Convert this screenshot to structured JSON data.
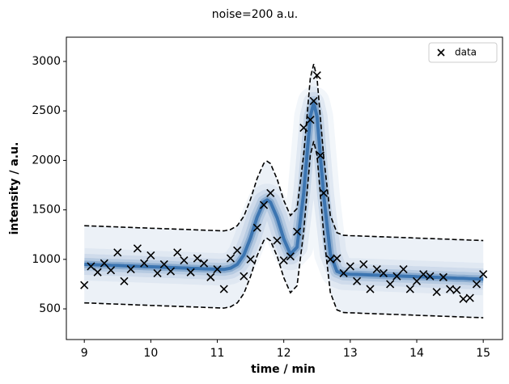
{
  "chart_data": {
    "type": "scatter",
    "title": "noise=200 a.u.",
    "xlabel": "time / min",
    "ylabel": "intensity / a.u.",
    "xlim": [
      8.73,
      15.29
    ],
    "ylim": [
      190,
      3245
    ],
    "xticks": [
      9,
      10,
      11,
      12,
      13,
      14,
      15
    ],
    "yticks": [
      500,
      1000,
      1500,
      2000,
      2500,
      3000
    ],
    "legend": "upper right",
    "series": [
      {
        "name": "data",
        "color": "#000000",
        "marker": "x",
        "x": [
          9.0,
          9.1,
          9.2,
          9.3,
          9.4,
          9.5,
          9.6,
          9.7,
          9.8,
          9.9,
          10.0,
          10.1,
          10.2,
          10.3,
          10.4,
          10.5,
          10.6,
          10.7,
          10.8,
          10.9,
          11.0,
          11.1,
          11.2,
          11.3,
          11.4,
          11.5,
          11.6,
          11.7,
          11.8,
          11.9,
          12.0,
          12.1,
          12.2,
          12.3,
          12.4,
          12.45,
          12.5,
          12.55,
          12.6,
          12.7,
          12.8,
          12.9,
          13.0,
          13.1,
          13.2,
          13.3,
          13.4,
          13.5,
          13.6,
          13.7,
          13.8,
          13.9,
          14.0,
          14.1,
          14.2,
          14.3,
          14.4,
          14.5,
          14.6,
          14.7,
          14.8,
          14.9,
          15.0
        ],
        "values": [
          740,
          930,
          870,
          960,
          890,
          1070,
          780,
          900,
          1110,
          960,
          1040,
          860,
          950,
          880,
          1070,
          990,
          870,
          1010,
          960,
          820,
          900,
          700,
          1010,
          1090,
          830,
          1000,
          1320,
          1550,
          1670,
          1190,
          990,
          1030,
          1280,
          2330,
          2410,
          2600,
          2860,
          2050,
          1670,
          1000,
          1010,
          860,
          930,
          780,
          950,
          700,
          900,
          860,
          750,
          830,
          900,
          700,
          780,
          850,
          830,
          670,
          820,
          700,
          690,
          600,
          610,
          750,
          850
        ]
      }
    ],
    "band": {
      "color": "#08519c",
      "line_color": "#000000",
      "line_style": "dashed",
      "x": [
        9.0,
        9.1,
        9.2,
        9.3,
        9.4,
        9.5,
        9.6,
        9.7,
        9.8,
        9.9,
        10.0,
        10.1,
        10.2,
        10.3,
        10.4,
        10.5,
        10.6,
        10.7,
        10.8,
        10.9,
        11.0,
        11.1,
        11.2,
        11.3,
        11.4,
        11.5,
        11.6,
        11.7,
        11.75,
        11.8,
        11.9,
        12.0,
        12.1,
        12.2,
        12.3,
        12.4,
        12.45,
        12.5,
        12.6,
        12.7,
        12.8,
        12.9,
        13.0,
        13.1,
        13.2,
        13.3,
        13.4,
        13.5,
        13.6,
        13.7,
        13.8,
        13.9,
        14.0,
        14.1,
        14.2,
        14.3,
        14.4,
        14.5,
        14.6,
        14.7,
        14.8,
        14.9,
        15.0
      ],
      "mean": [
        950,
        948,
        945,
        943,
        940,
        938,
        935,
        933,
        930,
        928,
        925,
        923,
        920,
        918,
        915,
        913,
        910,
        908,
        905,
        903,
        900,
        898,
        911,
        950,
        1046,
        1218,
        1428,
        1581,
        1601,
        1578,
        1421,
        1205,
        1053,
        1124,
        1672,
        2443,
        2584,
        2441,
        1648,
        1055,
        879,
        853,
        850,
        848,
        845,
        843,
        840,
        838,
        835,
        833,
        830,
        828,
        825,
        823,
        820,
        818,
        815,
        813,
        810,
        808,
        805,
        803,
        800
      ],
      "upper": [
        1340,
        1338,
        1335,
        1333,
        1330,
        1328,
        1325,
        1323,
        1320,
        1318,
        1315,
        1313,
        1310,
        1308,
        1305,
        1303,
        1300,
        1298,
        1295,
        1293,
        1290,
        1288,
        1301,
        1340,
        1436,
        1608,
        1818,
        1971,
        1991,
        1968,
        1811,
        1595,
        1443,
        1514,
        2062,
        2833,
        2974,
        2831,
        2038,
        1445,
        1269,
        1243,
        1240,
        1238,
        1235,
        1233,
        1230,
        1228,
        1225,
        1223,
        1220,
        1218,
        1215,
        1213,
        1210,
        1208,
        1205,
        1203,
        1200,
        1198,
        1195,
        1193,
        1190
      ],
      "lower": [
        560,
        558,
        555,
        553,
        550,
        548,
        545,
        543,
        540,
        538,
        535,
        533,
        530,
        528,
        525,
        523,
        520,
        518,
        515,
        513,
        510,
        508,
        521,
        560,
        656,
        828,
        1038,
        1191,
        1211,
        1188,
        1031,
        815,
        663,
        734,
        1282,
        2053,
        2194,
        2051,
        1258,
        665,
        489,
        463,
        460,
        458,
        455,
        453,
        450,
        448,
        445,
        443,
        440,
        438,
        435,
        433,
        430,
        428,
        425,
        423,
        420,
        418,
        415,
        413,
        410
      ]
    }
  }
}
